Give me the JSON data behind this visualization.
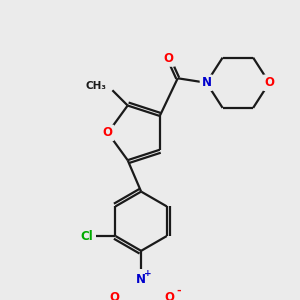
{
  "background_color": "#ebebeb",
  "bond_color": "#1a1a1a",
  "atom_colors": {
    "O": "#ff0000",
    "N": "#0000cc",
    "Cl": "#00aa00",
    "C": "#1a1a1a"
  },
  "figsize": [
    3.0,
    3.0
  ],
  "dpi": 100,
  "lw": 1.6
}
